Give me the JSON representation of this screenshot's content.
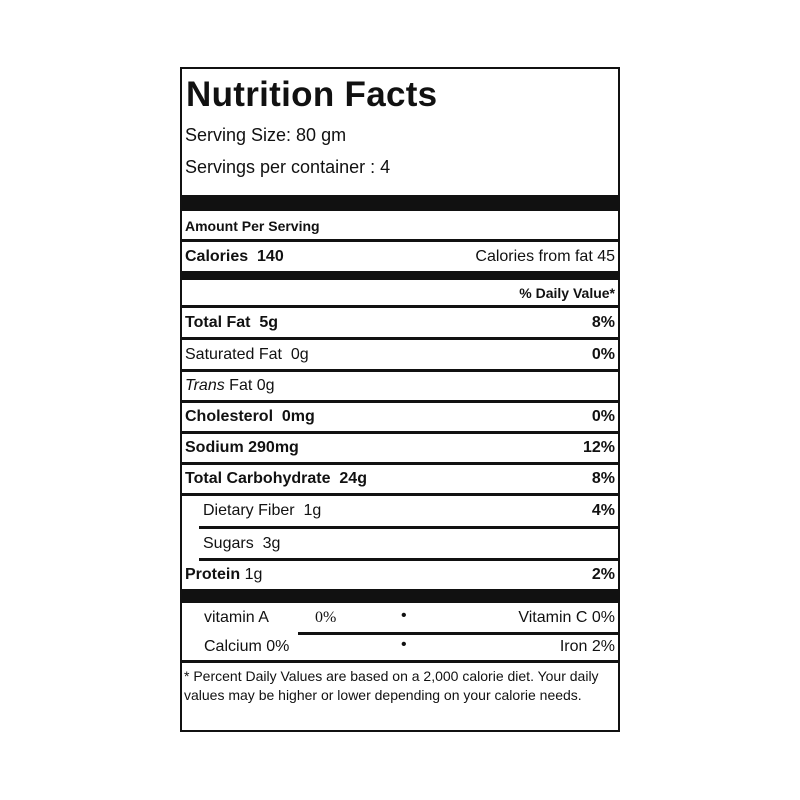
{
  "title": "Nutrition Facts",
  "serving_size": "Serving Size:  80 gm",
  "servings_per_container": "Servings per container : 4",
  "amount_per_serving": "Amount Per Serving",
  "calories": {
    "label": "Calories  140",
    "from_fat": "Calories from fat 45"
  },
  "daily_value_header": "% Daily Value*",
  "nutrients": [
    {
      "name": "Total Fat",
      "amount": "5g",
      "dv": "8%"
    },
    {
      "name": "Saturated Fat",
      "amount": "0g",
      "dv": "0%"
    },
    {
      "name": "Trans",
      "amount": "Fat 0g",
      "dv": ""
    },
    {
      "name": "Cholesterol",
      "amount": "0mg",
      "dv": "0%"
    },
    {
      "name": "Sodium",
      "amount": "290mg",
      "dv": "12%"
    },
    {
      "name": "Total Carbohydrate",
      "amount": "24g",
      "dv": "8%"
    },
    {
      "name": "Dietary Fiber",
      "amount": "1g",
      "dv": "4%"
    },
    {
      "name": "Sugars",
      "amount": "3g",
      "dv": ""
    },
    {
      "name": "Protein",
      "amount": "1g",
      "dv": "2%"
    }
  ],
  "vitamins": {
    "vitamin_a_label": "vitamin A",
    "vitamin_a_value": "0%",
    "vitamin_c": "Vitamin C 0%",
    "calcium": "Calcium 0%",
    "iron": "Iron 2%",
    "bullet": "•"
  },
  "footnote": "* Percent Daily Values are based on a 2,000 calorie diet. Your daily values may be higher or lower depending on your calorie needs."
}
